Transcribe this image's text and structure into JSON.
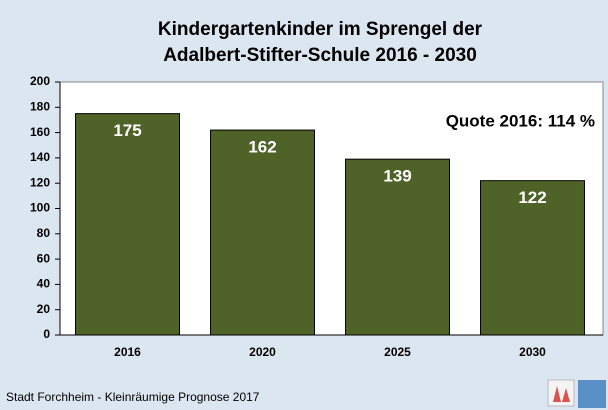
{
  "chart_data": {
    "type": "bar",
    "title": [
      "Kindergartenkinder im Sprengel der",
      "Adalbert-Stifter-Schule 2016 - 2030"
    ],
    "categories": [
      "2016",
      "2020",
      "2025",
      "2030"
    ],
    "values": [
      175,
      162,
      139,
      122
    ],
    "color": "#4f6228",
    "ylim": [
      0,
      200
    ],
    "yticks": [
      0,
      20,
      40,
      60,
      80,
      100,
      120,
      140,
      160,
      180,
      200
    ],
    "grid": false,
    "annotation": "Quote 2016:  114 %",
    "source": "Stadt Forchheim - Kleinräumige Prognose 2017"
  }
}
